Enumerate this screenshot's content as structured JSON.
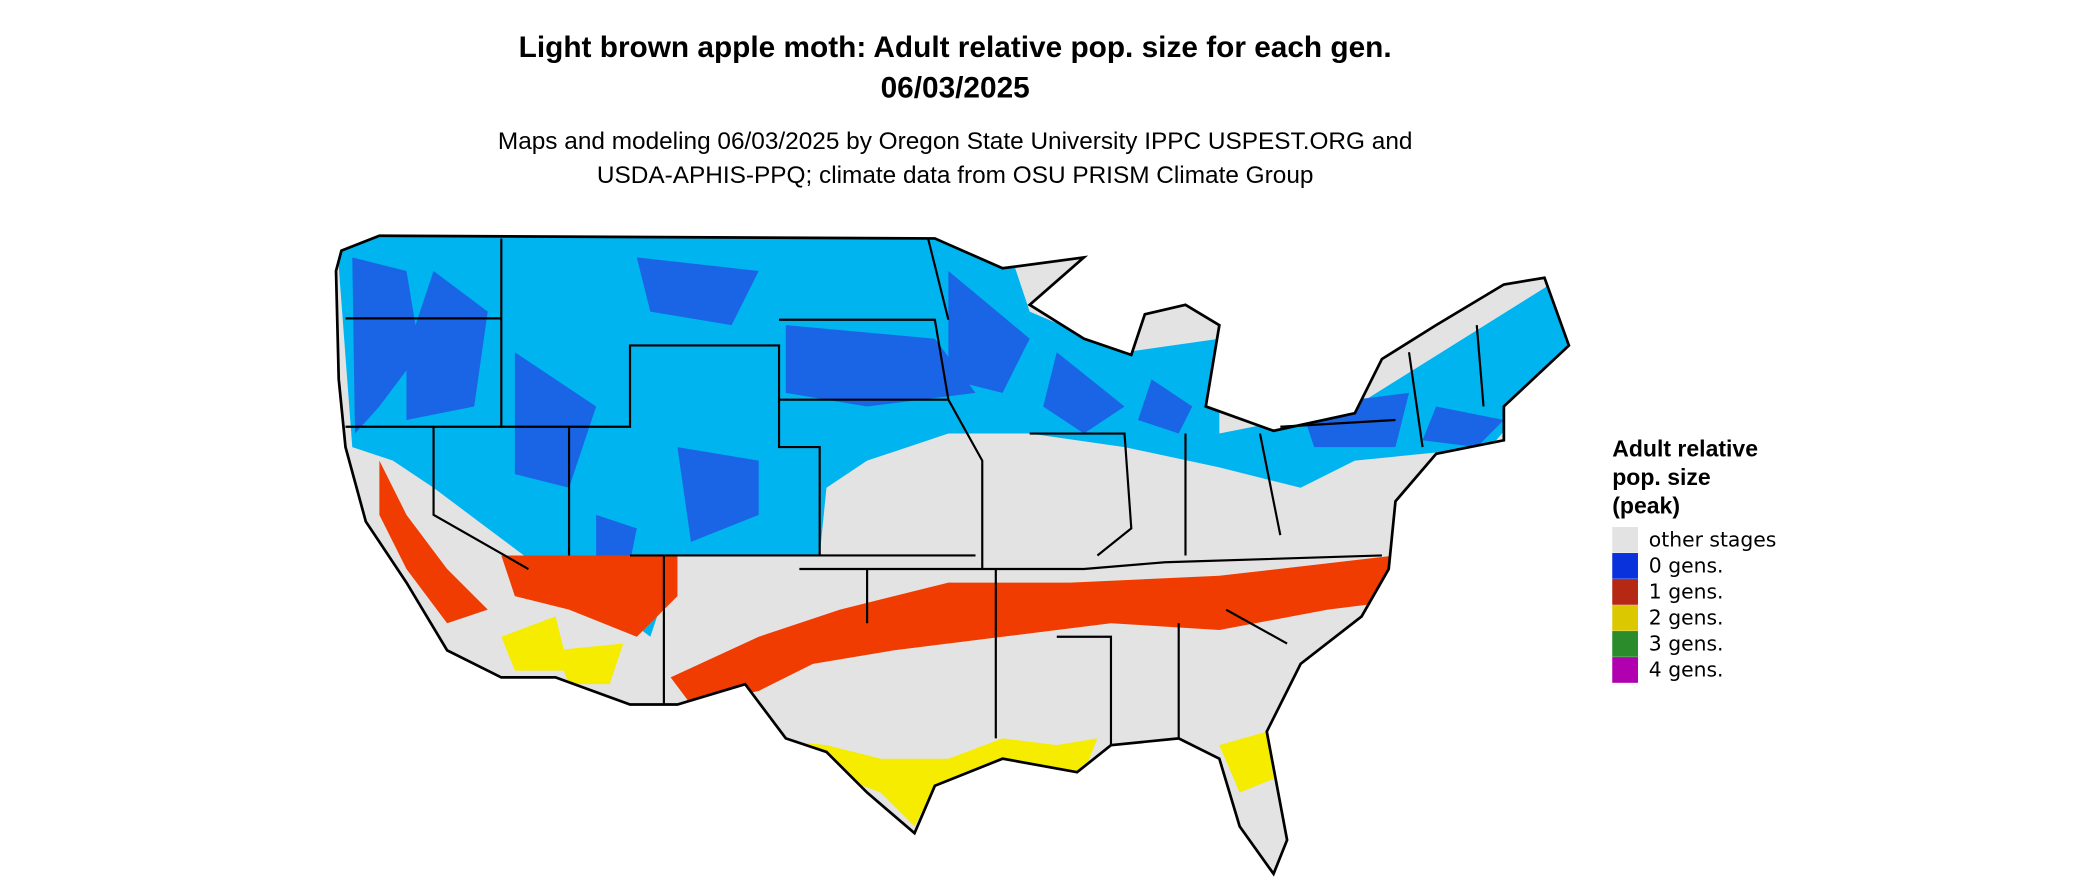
{
  "header": {
    "title": [
      "Light brown apple moth: Adult relative pop. size for each gen.",
      "06/03/2025"
    ],
    "subtitle": [
      "Maps and modeling 06/03/2025 by Oregon State University IPPC USPEST.ORG and",
      "USDA-APHIS-PPQ; climate data from OSU PRISM Climate Group"
    ]
  },
  "legend": {
    "title": [
      "Adult relative",
      "pop. size",
      "(peak)"
    ],
    "items": [
      {
        "label": "other stages",
        "color": "#e3e3e3"
      },
      {
        "label": "0 gens.",
        "color": "#0a32dc"
      },
      {
        "label": "1 gens.",
        "color": "#b42814"
      },
      {
        "label": "2 gens.",
        "color": "#dcc800"
      },
      {
        "label": "3 gens.",
        "color": "#2a8c2a"
      },
      {
        "label": "4 gens.",
        "color": "#b000b0"
      }
    ]
  }
}
